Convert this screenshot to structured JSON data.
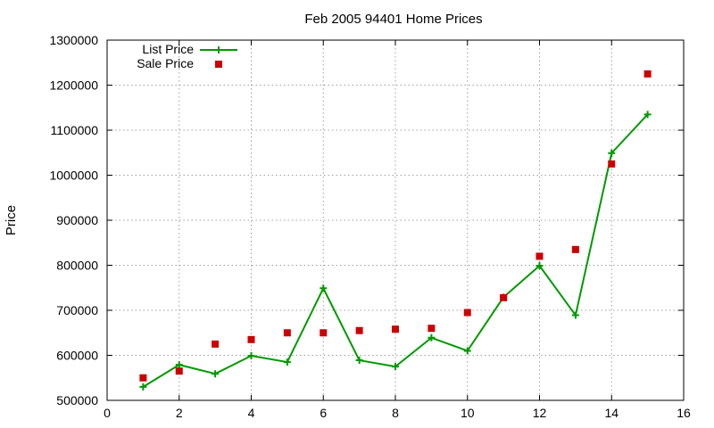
{
  "chart_data": {
    "type": "line",
    "title": "Feb 2005 94401 Home Prices",
    "xlabel": "",
    "ylabel": "Price",
    "xlim": [
      0,
      16
    ],
    "ylim": [
      500000,
      1300000
    ],
    "x_ticks": [
      "0",
      "2",
      "4",
      "6",
      "8",
      "10",
      "12",
      "14",
      "16"
    ],
    "y_ticks": [
      "500000",
      "600000",
      "700000",
      "800000",
      "900000",
      "1000000",
      "1100000",
      "1200000",
      "1300000"
    ],
    "grid": true,
    "legend_position": "top-left",
    "series": [
      {
        "name": "List Price",
        "style": "lines+points",
        "color": "#009900",
        "x": [
          1,
          2,
          3,
          4,
          5,
          6,
          7,
          8,
          9,
          10,
          11,
          12,
          13,
          14,
          15
        ],
        "y": [
          530000,
          579000,
          559000,
          599000,
          585000,
          749000,
          589000,
          575000,
          639000,
          610000,
          729000,
          799000,
          689000,
          1049000,
          1135000
        ]
      },
      {
        "name": "Sale Price",
        "style": "points",
        "color": "#cc0000",
        "x": [
          1,
          2,
          3,
          4,
          5,
          6,
          7,
          8,
          9,
          10,
          11,
          12,
          13,
          14,
          15
        ],
        "y": [
          550000,
          565000,
          625000,
          635000,
          650000,
          650000,
          655000,
          658000,
          660000,
          695000,
          728000,
          820000,
          835000,
          1025000,
          1225000
        ]
      }
    ]
  }
}
